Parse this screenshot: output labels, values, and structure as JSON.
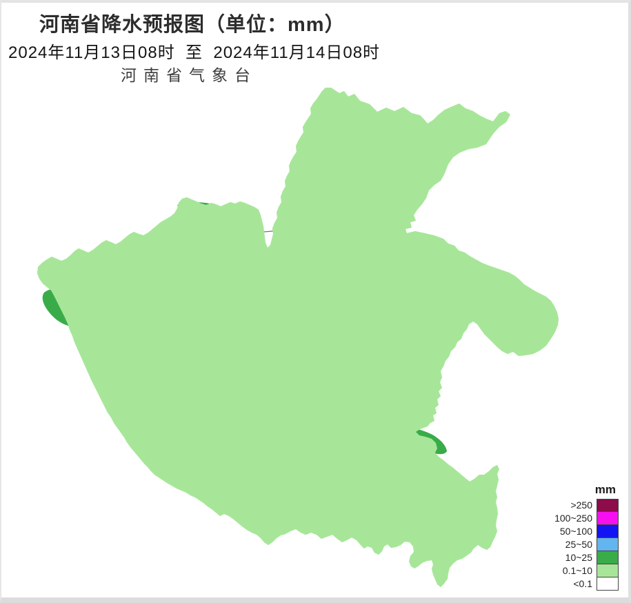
{
  "header": {
    "title": "河南省降水预报图（单位：mm）",
    "period": "2024年11月13日08时  至  2024年11月14日08时",
    "agency": "河南省气象台"
  },
  "legend": {
    "unit": "mm",
    "items": [
      {
        "label": ">250",
        "color": "#8D0C4A"
      },
      {
        "label": "100~250",
        "color": "#F70FF2"
      },
      {
        "label": "50~100",
        "color": "#1414F2"
      },
      {
        "label": "25~50",
        "color": "#62B5EE"
      },
      {
        "label": "10~25",
        "color": "#39AC49"
      },
      {
        "label": "0.1~10",
        "color": "#A7E699"
      },
      {
        "label": "<0.1",
        "color": "#FFFFFF"
      }
    ]
  },
  "map": {
    "region": "河南省",
    "colors": {
      "base_0_1_to_10": "#A7E699",
      "level_10_to_25": "#39AC49",
      "level_25_to_50": "#62B5EE",
      "level_below_0_1": "#FFFFFF",
      "province_border": "#4a4a4a",
      "city_border": "#737373"
    }
  }
}
